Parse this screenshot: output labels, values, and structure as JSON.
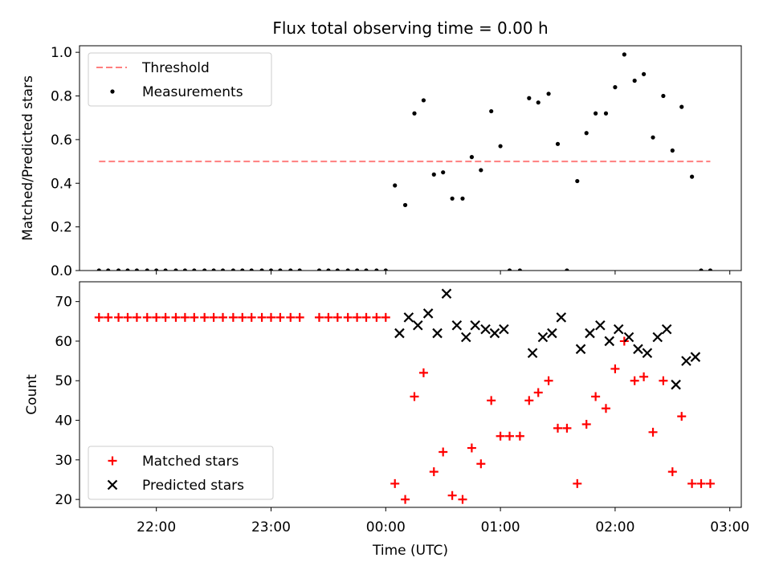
{
  "chart_data": {
    "type": "scatter",
    "title": "Flux total observing time = 0.00 h",
    "xlabel": "Time (UTC)",
    "x_unit": "hours_utc",
    "xlim": [
      21.33,
      27.1
    ],
    "xticks": [
      {
        "value": 22,
        "label": "22:00"
      },
      {
        "value": 23,
        "label": "23:00"
      },
      {
        "value": 24,
        "label": "00:00"
      },
      {
        "value": 25,
        "label": "01:00"
      },
      {
        "value": 26,
        "label": "02:00"
      },
      {
        "value": 27,
        "label": "03:00"
      }
    ],
    "x": [
      21.5,
      21.58,
      21.67,
      21.75,
      21.83,
      21.92,
      22.0,
      22.08,
      22.17,
      22.25,
      22.33,
      22.42,
      22.5,
      22.58,
      22.67,
      22.75,
      22.83,
      22.92,
      23.0,
      23.08,
      23.17,
      23.25,
      23.42,
      23.5,
      23.58,
      23.67,
      23.75,
      23.83,
      23.92,
      24.0,
      24.08,
      24.17,
      24.25,
      24.33,
      24.42,
      24.5,
      24.58,
      24.67,
      24.75,
      24.83,
      24.92,
      25.0,
      25.08,
      25.17,
      25.25,
      25.33,
      25.42,
      25.5,
      25.58,
      25.67,
      25.75,
      25.83,
      25.92,
      26.0,
      26.08,
      26.17,
      26.25,
      26.33,
      26.42,
      26.5,
      26.58,
      26.67,
      26.75,
      26.83
    ],
    "panels": [
      {
        "ylabel": "Matched/Predicted stars",
        "ylim": [
          0,
          1.03
        ],
        "yticks": [
          {
            "value": 0.0,
            "label": "0.0"
          },
          {
            "value": 0.2,
            "label": "0.2"
          },
          {
            "value": 0.4,
            "label": "0.4"
          },
          {
            "value": 0.6,
            "label": "0.6"
          },
          {
            "value": 0.8,
            "label": "0.8"
          },
          {
            "value": 1.0,
            "label": "1.0"
          }
        ],
        "legend_position": "upper-left",
        "series": [
          {
            "name": "Threshold",
            "kind": "dashed-line",
            "color": "#ff7f7f",
            "x_range": [
              21.5,
              26.83
            ],
            "value": 0.5
          },
          {
            "name": "Measurements",
            "kind": "dot",
            "color": "#000000",
            "y": [
              0,
              0,
              0,
              0,
              0,
              0,
              0,
              0,
              0,
              0,
              0,
              0,
              0,
              0,
              0,
              0,
              0,
              0,
              0,
              0,
              0,
              0,
              0,
              0,
              0,
              0,
              0,
              0,
              0,
              0,
              0.39,
              0.3,
              0.72,
              0.78,
              0.44,
              0.45,
              0.33,
              0.33,
              0.52,
              0.46,
              0.73,
              0.57,
              0,
              0,
              0.79,
              0.77,
              0.81,
              0.58,
              0,
              0.41,
              0.63,
              0.72,
              0.72,
              0.84,
              0.99,
              0.87,
              0.9,
              0.61,
              0.8,
              0.55,
              0.75,
              0.43,
              0,
              0
            ]
          }
        ]
      },
      {
        "ylabel": "Count",
        "ylim": [
          18,
          75
        ],
        "yticks": [
          {
            "value": 20,
            "label": "20"
          },
          {
            "value": 30,
            "label": "30"
          },
          {
            "value": 40,
            "label": "40"
          },
          {
            "value": 50,
            "label": "50"
          },
          {
            "value": 60,
            "label": "60"
          },
          {
            "value": 70,
            "label": "70"
          }
        ],
        "legend_position": "lower-left",
        "series": [
          {
            "name": "Matched stars",
            "kind": "plus",
            "color": "#ff0000",
            "y": [
              66,
              66,
              66,
              66,
              66,
              66,
              66,
              66,
              66,
              66,
              66,
              66,
              66,
              66,
              66,
              66,
              66,
              66,
              66,
              66,
              66,
              66,
              66,
              66,
              66,
              66,
              66,
              66,
              66,
              66,
              24,
              20,
              46,
              52,
              27,
              32,
              21,
              20,
              33,
              29,
              45,
              36,
              36,
              36,
              45,
              47,
              50,
              38,
              38,
              24,
              39,
              46,
              43,
              53,
              60,
              50,
              51,
              37,
              50,
              27,
              41,
              24,
              24,
              24
            ]
          },
          {
            "name": "Predicted stars",
            "kind": "x",
            "color": "#000000",
            "x": [
              24.12,
              24.2,
              24.28,
              24.37,
              24.45,
              24.53,
              24.62,
              24.7,
              24.78,
              24.87,
              24.95,
              25.03,
              25.28,
              25.37,
              25.45,
              25.53,
              25.7,
              25.78,
              25.87,
              25.95,
              26.03,
              26.12,
              26.2,
              26.28,
              26.37,
              26.45,
              26.53,
              26.62,
              26.7
            ],
            "y": [
              62,
              66,
              64,
              67,
              62,
              72,
              64,
              61,
              64,
              63,
              62,
              63,
              57,
              61,
              62,
              66,
              58,
              62,
              64,
              60,
              63,
              61,
              58,
              57,
              61,
              63,
              49,
              55,
              56
            ]
          }
        ]
      }
    ]
  }
}
